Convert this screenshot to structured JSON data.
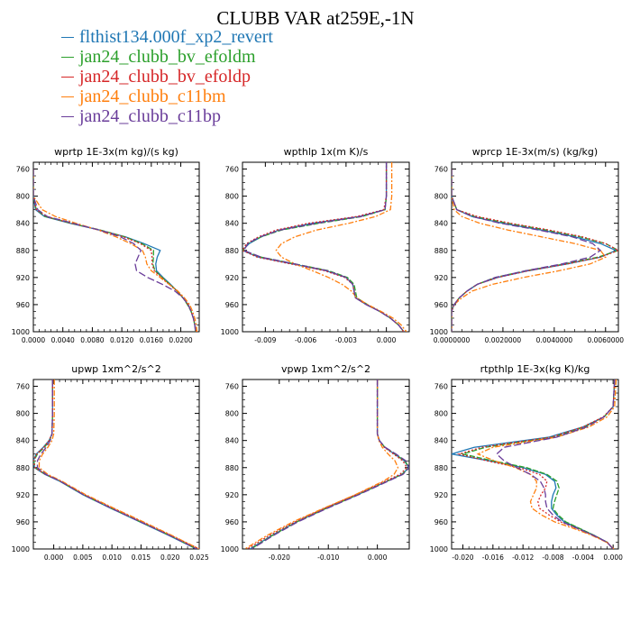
{
  "title": "CLUBB VAR at259E,-1N",
  "legend": [
    {
      "label": "flthist134.000f_xp2_revert",
      "color": "#1f77b4"
    },
    {
      "label": "jan24_clubb_bv_efoldm",
      "color": "#2ca02c"
    },
    {
      "label": "jan24_clubb_bv_efoldp",
      "color": "#d62728"
    },
    {
      "label": "jan24_clubb_c11bm",
      "color": "#ff7f0e"
    },
    {
      "label": "jan24_clubb_c11bp",
      "color": "#6a3d9a"
    }
  ],
  "chart_data": [
    {
      "type": "line",
      "title": "wprtp  1E-3x(m kg)/(s kg)",
      "xlim": [
        0,
        0.0225
      ],
      "ylim": [
        1000,
        750
      ],
      "xticks": [
        0,
        0.004,
        0.008,
        0.012,
        0.016,
        0.02
      ],
      "xtick_labels": [
        "0.0000",
        "0.0040",
        "0.0080",
        "0.0120",
        "0.0160",
        "0.0200"
      ],
      "yticks": [
        760,
        800,
        840,
        880,
        920,
        960,
        1000
      ],
      "levels": [
        760,
        780,
        800,
        820,
        830,
        840,
        850,
        860,
        870,
        880,
        890,
        900,
        910,
        920,
        930,
        940,
        950,
        960,
        970,
        980,
        990,
        1000
      ],
      "series": [
        {
          "values": [
            0,
            0,
            0,
            0.0003,
            0.0015,
            0.005,
            0.009,
            0.0125,
            0.015,
            0.0172,
            0.0168,
            0.0166,
            0.0167,
            0.0176,
            0.0186,
            0.0195,
            0.0203,
            0.021,
            0.0214,
            0.0217,
            0.0219,
            0.022
          ]
        },
        {
          "values": [
            0,
            0,
            0,
            0.0004,
            0.0016,
            0.0051,
            0.0091,
            0.0124,
            0.0147,
            0.0163,
            0.0163,
            0.0162,
            0.0165,
            0.0175,
            0.0185,
            0.0195,
            0.0203,
            0.0209,
            0.0214,
            0.0217,
            0.0219,
            0.022
          ]
        },
        {
          "values": [
            0,
            0,
            0,
            0.0004,
            0.0018,
            0.0052,
            0.009,
            0.0122,
            0.0145,
            0.016,
            0.0161,
            0.0161,
            0.0164,
            0.0174,
            0.0184,
            0.0195,
            0.0203,
            0.021,
            0.0214,
            0.0217,
            0.0219,
            0.0221
          ]
        },
        {
          "values": [
            0,
            0,
            0,
            0.0012,
            0.003,
            0.0058,
            0.0088,
            0.0112,
            0.0132,
            0.0148,
            0.0152,
            0.0154,
            0.016,
            0.0172,
            0.0184,
            0.0196,
            0.0205,
            0.0212,
            0.0216,
            0.0219,
            0.0221,
            0.0222
          ]
        },
        {
          "values": [
            0,
            0,
            0,
            0.0006,
            0.0019,
            0.0054,
            0.0089,
            0.0118,
            0.0136,
            0.0146,
            0.0142,
            0.0138,
            0.014,
            0.0155,
            0.0175,
            0.0192,
            0.0203,
            0.021,
            0.0214,
            0.0217,
            0.0219,
            0.022
          ]
        }
      ]
    },
    {
      "type": "line",
      "title": "wpthlp  1x(m K)/s",
      "xlim": [
        -0.0107,
        0.0017
      ],
      "ylim": [
        1000,
        750
      ],
      "xticks": [
        -0.009,
        -0.006,
        -0.003,
        0.0
      ],
      "xtick_labels": [
        "-0.009",
        "-0.006",
        "-0.003",
        "0.000"
      ],
      "yticks": [
        760,
        800,
        840,
        880,
        920,
        960,
        1000
      ],
      "levels": [
        750,
        780,
        800,
        820,
        830,
        840,
        850,
        860,
        870,
        880,
        890,
        900,
        910,
        920,
        930,
        940,
        950,
        960,
        970,
        980,
        990,
        1000
      ],
      "series": [
        {
          "values": [
            0.0,
            0.0,
            0.0,
            -0.0001,
            -0.002,
            -0.0055,
            -0.008,
            -0.0093,
            -0.0102,
            -0.0107,
            -0.0095,
            -0.007,
            -0.0045,
            -0.003,
            -0.0025,
            -0.0024,
            -0.0023,
            -0.0015,
            -0.0005,
            0.0003,
            0.0009,
            0.0013
          ]
        },
        {
          "values": [
            0.0,
            0.0,
            0.0,
            -0.0001,
            -0.0018,
            -0.005,
            -0.0078,
            -0.0093,
            -0.0103,
            -0.0107,
            -0.0093,
            -0.0068,
            -0.0043,
            -0.0029,
            -0.0024,
            -0.0023,
            -0.0022,
            -0.0014,
            -0.0005,
            0.0003,
            0.0009,
            0.0013
          ]
        },
        {
          "values": [
            0.0,
            0.0,
            0.0,
            -0.0002,
            -0.0022,
            -0.0058,
            -0.0082,
            -0.0095,
            -0.0104,
            -0.0107,
            -0.0096,
            -0.0071,
            -0.0046,
            -0.0031,
            -0.0025,
            -0.0024,
            -0.0023,
            -0.0015,
            -0.0005,
            0.0003,
            0.0009,
            0.0013
          ]
        },
        {
          "values": [
            0.0004,
            0.0004,
            0.0004,
            0.0003,
            -0.0008,
            -0.0028,
            -0.0052,
            -0.0068,
            -0.0078,
            -0.0082,
            -0.0078,
            -0.0068,
            -0.0055,
            -0.0043,
            -0.0033,
            -0.0026,
            -0.0022,
            -0.0014,
            -0.0004,
            0.0005,
            0.0011,
            0.0015
          ]
        },
        {
          "values": [
            0.0,
            0.0,
            0.0,
            -0.0001,
            -0.0019,
            -0.0052,
            -0.0079,
            -0.0094,
            -0.0103,
            -0.0106,
            -0.0093,
            -0.0068,
            -0.0044,
            -0.003,
            -0.0025,
            -0.0024,
            -0.0023,
            -0.0015,
            -0.0005,
            0.0003,
            0.0009,
            0.0013
          ]
        }
      ]
    },
    {
      "type": "line",
      "title": "wprcp  1E-3x(m/s) (kg/kg)",
      "xlim": [
        0,
        0.0065
      ],
      "ylim": [
        1000,
        750
      ],
      "xticks": [
        0,
        0.002,
        0.004,
        0.006
      ],
      "xtick_labels": [
        "0.0000000",
        "0.0020000",
        "0.0040000",
        "0.0060000"
      ],
      "yticks": [
        760,
        800,
        840,
        880,
        920,
        960,
        1000
      ],
      "levels": [
        760,
        800,
        820,
        830,
        840,
        850,
        860,
        870,
        880,
        890,
        900,
        910,
        920,
        930,
        940,
        950,
        960,
        970,
        980,
        1000
      ],
      "series": [
        {
          "values": [
            0,
            0,
            0.0002,
            0.0008,
            0.002,
            0.0035,
            0.0048,
            0.0058,
            0.0064,
            0.0058,
            0.0045,
            0.003,
            0.0018,
            0.001,
            0.0006,
            0.0003,
            0.0001,
            0,
            0,
            0
          ]
        },
        {
          "values": [
            0,
            0,
            0.0002,
            0.0009,
            0.0022,
            0.0037,
            0.005,
            0.006,
            0.0065,
            0.0057,
            0.0044,
            0.0029,
            0.0017,
            0.001,
            0.0006,
            0.0003,
            0.0001,
            0,
            0,
            0
          ]
        },
        {
          "values": [
            0,
            0,
            0.0002,
            0.001,
            0.0023,
            0.0038,
            0.0051,
            0.006,
            0.0065,
            0.0058,
            0.0045,
            0.003,
            0.0018,
            0.001,
            0.0006,
            0.0003,
            0.0001,
            0,
            0,
            0
          ]
        },
        {
          "values": [
            0,
            0,
            0.0001,
            0.0004,
            0.0011,
            0.0022,
            0.0035,
            0.0048,
            0.0058,
            0.006,
            0.0054,
            0.0042,
            0.0028,
            0.0016,
            0.0008,
            0.0004,
            0.0001,
            0,
            0,
            0
          ]
        },
        {
          "values": [
            0,
            0,
            0.0002,
            0.0008,
            0.0019,
            0.0034,
            0.0047,
            0.0055,
            0.0058,
            0.0054,
            0.0043,
            0.0029,
            0.0017,
            0.001,
            0.0006,
            0.0003,
            0.0001,
            0,
            0,
            0
          ]
        }
      ]
    },
    {
      "type": "line",
      "title": "upwp  1xm^2/s^2",
      "xlim": [
        -0.0035,
        0.025
      ],
      "ylim": [
        1000,
        750
      ],
      "xticks": [
        0,
        0.005,
        0.01,
        0.015,
        0.02,
        0.025
      ],
      "xtick_labels": [
        "0.000",
        "0.005",
        "0.010",
        "0.015",
        "0.020",
        "0.025"
      ],
      "yticks": [
        760,
        800,
        840,
        880,
        920,
        960,
        1000
      ],
      "levels": [
        750,
        800,
        830,
        840,
        850,
        860,
        870,
        880,
        890,
        900,
        920,
        940,
        960,
        980,
        1000
      ],
      "series": [
        {
          "values": [
            -0.0002,
            -0.0002,
            -0.0003,
            -0.0008,
            -0.0018,
            -0.003,
            -0.0035,
            -0.0033,
            -0.0015,
            0.001,
            0.005,
            0.0098,
            0.0148,
            0.0198,
            0.0245
          ]
        },
        {
          "values": [
            -0.0002,
            -0.0002,
            -0.0003,
            -0.0007,
            -0.0016,
            -0.0028,
            -0.0034,
            -0.0032,
            -0.0014,
            0.0011,
            0.0051,
            0.0099,
            0.0149,
            0.0199,
            0.0246
          ]
        },
        {
          "values": [
            -0.0002,
            -0.0002,
            -0.0003,
            -0.0008,
            -0.0017,
            -0.0029,
            -0.0035,
            -0.0032,
            -0.0014,
            0.0012,
            0.0053,
            0.0102,
            0.0152,
            0.0202,
            0.025
          ]
        },
        {
          "values": [
            0.0001,
            0.0001,
            0.0,
            -0.0003,
            -0.001,
            -0.0019,
            -0.0025,
            -0.0025,
            -0.001,
            0.0014,
            0.0055,
            0.0104,
            0.0154,
            0.0203,
            0.025
          ]
        },
        {
          "values": [
            -0.0002,
            -0.0002,
            -0.0003,
            -0.0006,
            -0.0013,
            -0.0022,
            -0.0028,
            -0.0028,
            -0.0013,
            0.0011,
            0.0051,
            0.0099,
            0.0149,
            0.0199,
            0.0246
          ]
        }
      ]
    },
    {
      "type": "line",
      "title": "vpwp  1xm^2/s^2",
      "xlim": [
        -0.0275,
        0.0065
      ],
      "ylim": [
        1000,
        750
      ],
      "xticks": [
        -0.02,
        -0.01,
        0.0
      ],
      "xtick_labels": [
        "-0.020",
        "-0.010",
        "0.000"
      ],
      "yticks": [
        760,
        800,
        840,
        880,
        920,
        960,
        1000
      ],
      "levels": [
        750,
        800,
        830,
        840,
        850,
        860,
        870,
        880,
        890,
        900,
        920,
        940,
        960,
        980,
        1000
      ],
      "series": [
        {
          "values": [
            0,
            0,
            0,
            0.0004,
            0.0015,
            0.0035,
            0.0055,
            0.0064,
            0.005,
            0.002,
            -0.004,
            -0.0105,
            -0.0165,
            -0.0215,
            -0.026
          ]
        },
        {
          "values": [
            0,
            0,
            0,
            0.0004,
            0.0015,
            0.0036,
            0.0056,
            0.0065,
            0.005,
            0.002,
            -0.004,
            -0.0104,
            -0.0164,
            -0.0214,
            -0.0258
          ]
        },
        {
          "values": [
            0,
            0,
            0,
            0.0004,
            0.0014,
            0.0033,
            0.0052,
            0.006,
            0.0046,
            0.0016,
            -0.0044,
            -0.0108,
            -0.0168,
            -0.022,
            -0.0265
          ]
        },
        {
          "values": [
            0,
            0,
            0,
            0.0003,
            0.001,
            0.0022,
            0.0036,
            0.0042,
            0.0034,
            0.0012,
            -0.0045,
            -0.011,
            -0.0172,
            -0.0225,
            -0.027
          ]
        },
        {
          "values": [
            0,
            0,
            0,
            0.0004,
            0.0016,
            0.0038,
            0.0058,
            0.0065,
            0.0052,
            0.0022,
            -0.0038,
            -0.0102,
            -0.0162,
            -0.0212,
            -0.0256
          ]
        }
      ]
    },
    {
      "type": "line",
      "title": "rtpthlp  1E-3x(kg K)/kg",
      "xlim": [
        -0.0215,
        0.0007
      ],
      "ylim": [
        1000,
        750
      ],
      "xticks": [
        -0.02,
        -0.016,
        -0.012,
        -0.008,
        -0.004,
        0.0
      ],
      "xtick_labels": [
        "-0.020",
        "-0.016",
        "-0.012",
        "-0.008",
        "-0.004",
        "0.000"
      ],
      "yticks": [
        760,
        800,
        840,
        880,
        920,
        960,
        1000
      ],
      "levels": [
        750,
        790,
        805,
        820,
        835,
        850,
        860,
        870,
        880,
        890,
        900,
        910,
        920,
        930,
        940,
        950,
        960,
        970,
        980,
        990,
        1000
      ],
      "series": [
        {
          "values": [
            0.0002,
            0.0,
            -0.0012,
            -0.004,
            -0.0085,
            -0.0185,
            -0.0215,
            -0.0165,
            -0.012,
            -0.009,
            -0.0078,
            -0.0076,
            -0.008,
            -0.0082,
            -0.0082,
            -0.0075,
            -0.0065,
            -0.0045,
            -0.0025,
            -0.0008,
            0.0
          ]
        },
        {
          "values": [
            0.0002,
            0.0,
            -0.0012,
            -0.0038,
            -0.008,
            -0.017,
            -0.02,
            -0.016,
            -0.0115,
            -0.0088,
            -0.0075,
            -0.0072,
            -0.0075,
            -0.0078,
            -0.008,
            -0.0073,
            -0.0063,
            -0.0044,
            -0.0025,
            -0.0008,
            0.0
          ]
        },
        {
          "values": [
            0.0002,
            0.0,
            -0.0013,
            -0.004,
            -0.0082,
            -0.0175,
            -0.0205,
            -0.0168,
            -0.0125,
            -0.0098,
            -0.0088,
            -0.009,
            -0.0096,
            -0.01,
            -0.0098,
            -0.0085,
            -0.007,
            -0.0048,
            -0.0026,
            -0.0008,
            0.0
          ]
        },
        {
          "values": [
            0.0004,
            0.0002,
            -0.0008,
            -0.0032,
            -0.0075,
            -0.016,
            -0.018,
            -0.0158,
            -0.013,
            -0.011,
            -0.0102,
            -0.0102,
            -0.0106,
            -0.011,
            -0.0108,
            -0.0095,
            -0.0078,
            -0.0052,
            -0.0028,
            -0.0009,
            0.0001
          ]
        },
        {
          "values": [
            0.0002,
            0.0,
            -0.0012,
            -0.0035,
            -0.0075,
            -0.0145,
            -0.0155,
            -0.0145,
            -0.0128,
            -0.011,
            -0.0097,
            -0.0092,
            -0.009,
            -0.009,
            -0.0088,
            -0.008,
            -0.0068,
            -0.0047,
            -0.0026,
            -0.0008,
            0.0
          ]
        }
      ]
    }
  ]
}
